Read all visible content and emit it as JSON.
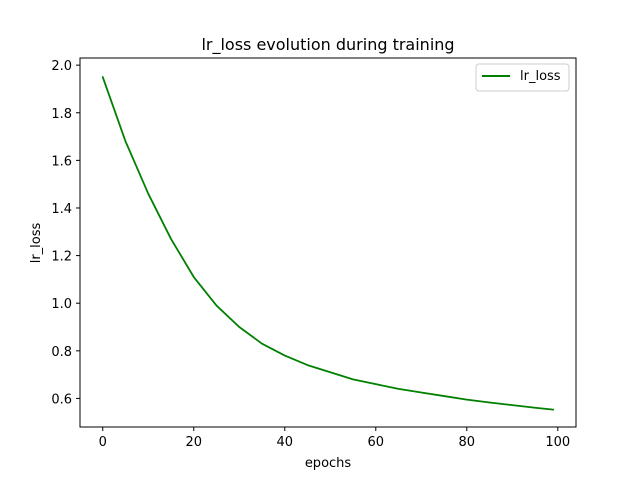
{
  "chart_data": {
    "type": "line",
    "title": "lr_loss evolution during training",
    "xlabel": "epochs",
    "ylabel": "lr_loss",
    "xlim": [
      -5,
      104
    ],
    "ylim": [
      0.48,
      2.03
    ],
    "xticks": [
      0,
      20,
      40,
      60,
      80,
      100
    ],
    "yticks": [
      0.6,
      0.8,
      1.0,
      1.2,
      1.4,
      1.6,
      1.8,
      2.0
    ],
    "xtick_labels": [
      "0",
      "20",
      "40",
      "60",
      "80",
      "100"
    ],
    "ytick_labels": [
      "0.6",
      "0.8",
      "1.0",
      "1.2",
      "1.4",
      "1.6",
      "1.8",
      "2.0"
    ],
    "grid": false,
    "legend_position": "top-right",
    "series": [
      {
        "name": "lr_loss",
        "color": "#008000",
        "x": [
          0,
          5,
          10,
          15,
          20,
          25,
          30,
          35,
          40,
          45,
          50,
          55,
          60,
          65,
          70,
          75,
          80,
          85,
          90,
          95,
          99
        ],
        "y": [
          1.95,
          1.68,
          1.46,
          1.27,
          1.11,
          0.99,
          0.9,
          0.83,
          0.78,
          0.74,
          0.71,
          0.68,
          0.66,
          0.64,
          0.625,
          0.61,
          0.595,
          0.583,
          0.572,
          0.561,
          0.553
        ]
      }
    ]
  }
}
